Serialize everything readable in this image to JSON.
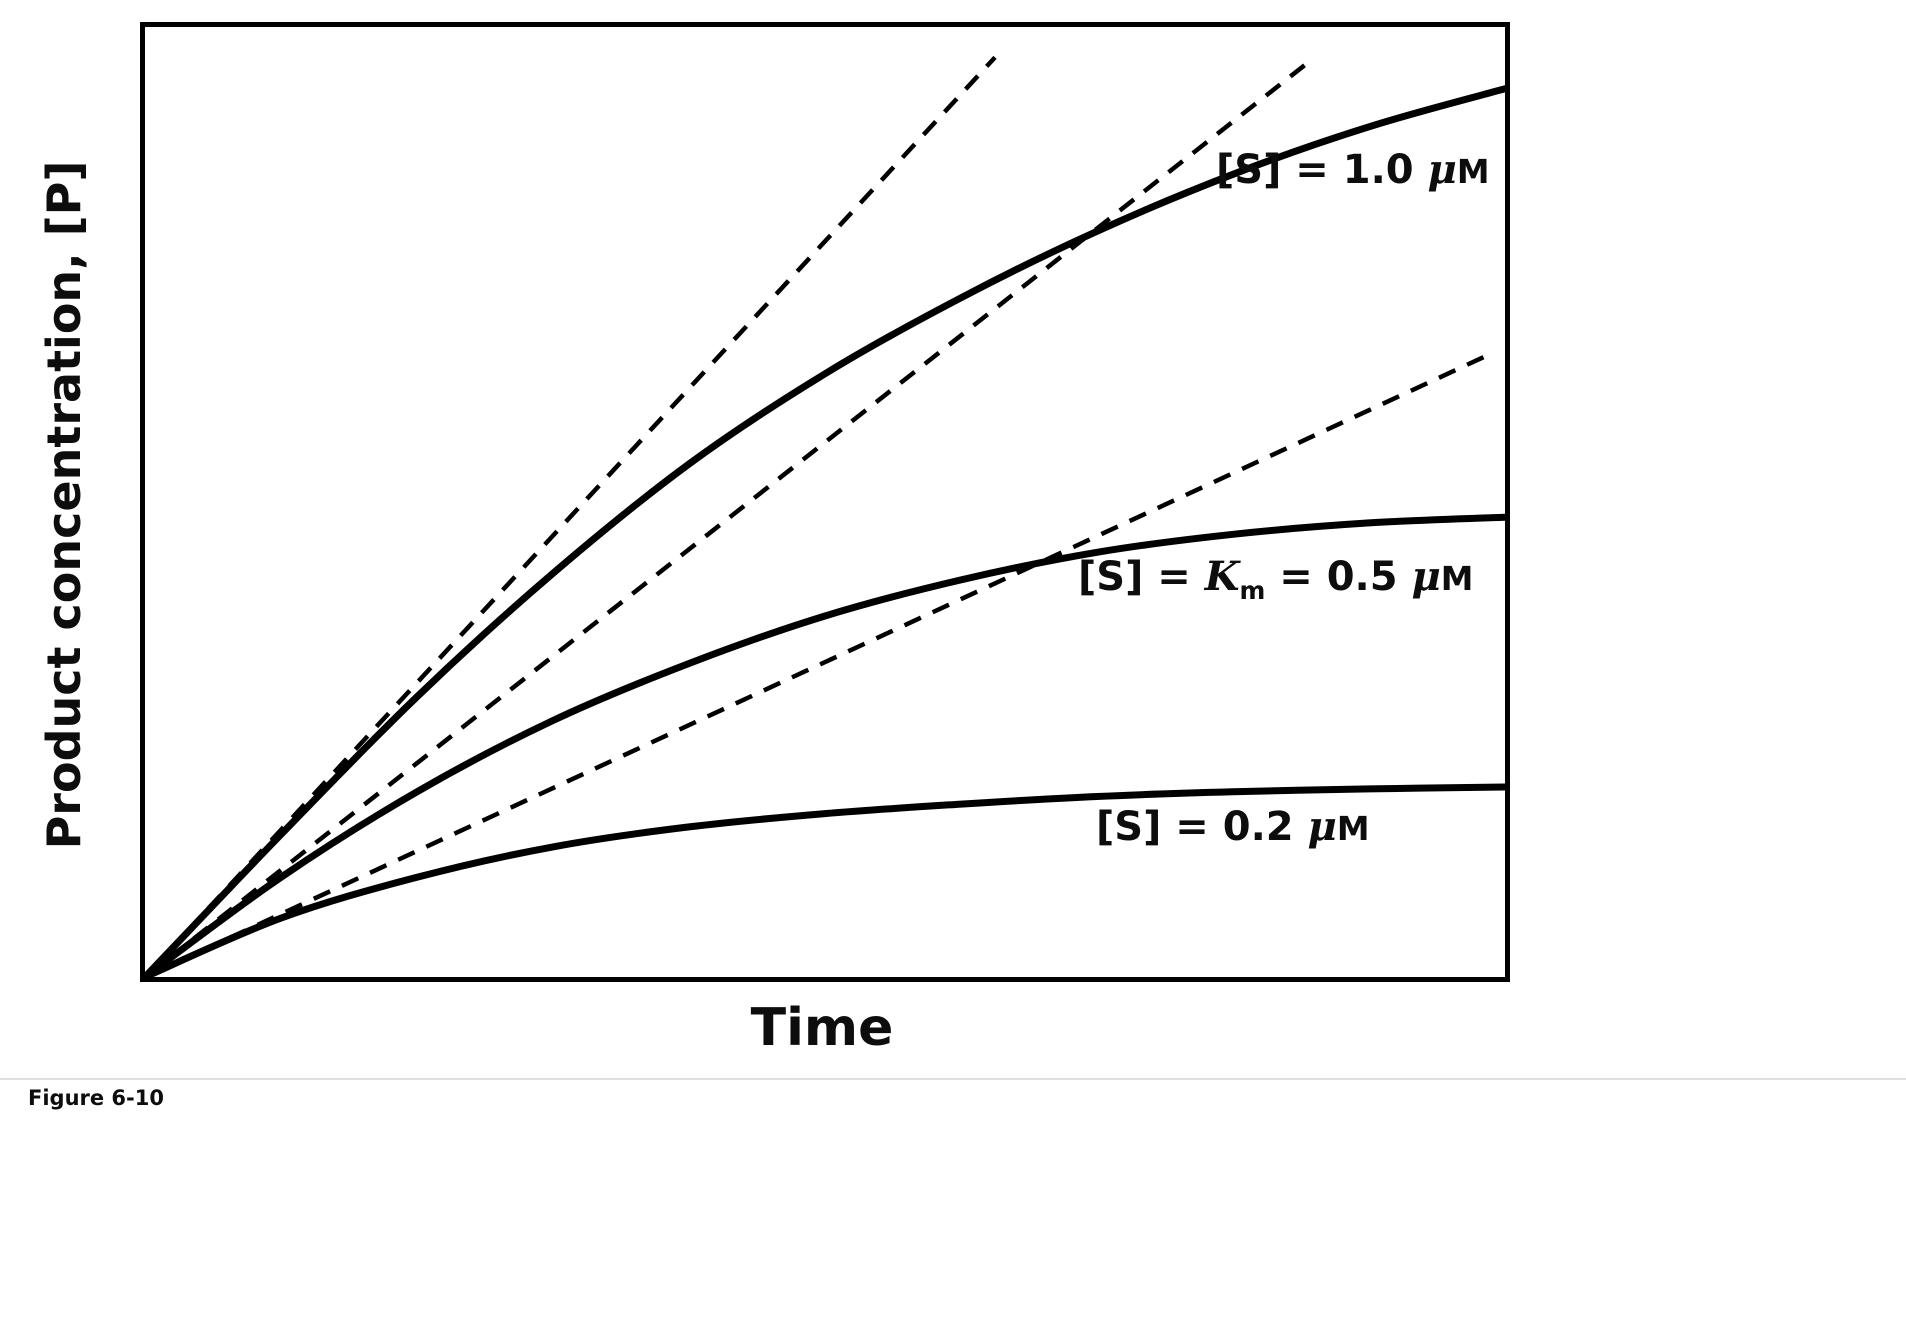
{
  "caption": "Figure 6-10",
  "chart_data": {
    "type": "line",
    "title": "",
    "xlabel": "Time",
    "ylabel": "Product concentration, [P]",
    "axes": {
      "x_ticks": [],
      "y_ticks": [],
      "x_range_normalized": [
        0,
        1
      ],
      "y_range_normalized": [
        0,
        1
      ],
      "grid": false,
      "frame": "full-box"
    },
    "line_color": "#000000",
    "x": [
      0,
      0.1,
      0.2,
      0.3,
      0.4,
      0.5,
      0.6,
      0.7,
      0.8,
      0.9,
      1.0
    ],
    "series": [
      {
        "name": "[S] = 1.0 μM",
        "style": "solid",
        "values": [
          0,
          0.15,
          0.295,
          0.425,
          0.54,
          0.635,
          0.715,
          0.785,
          0.845,
          0.895,
          0.935
        ]
      },
      {
        "name": "[S] = Km = 0.5 μM",
        "style": "solid",
        "values": [
          0,
          0.105,
          0.195,
          0.27,
          0.33,
          0.38,
          0.418,
          0.447,
          0.466,
          0.478,
          0.484
        ]
      },
      {
        "name": "[S] = 0.2 μM",
        "style": "solid",
        "values": [
          0,
          0.062,
          0.105,
          0.137,
          0.158,
          0.172,
          0.182,
          0.19,
          0.195,
          0.198,
          0.2
        ]
      }
    ],
    "initial_rate_lines": [
      {
        "for_series": "[S] = 1.0 μM",
        "style": "dashed",
        "x_start": 0,
        "y_start": 0,
        "x_end": 0.625,
        "y_end": 0.968
      },
      {
        "for_series": "[S] = Km = 0.5 μM",
        "style": "dashed",
        "x_start": 0,
        "y_start": 0,
        "x_end": 0.86,
        "y_end": 0.968
      },
      {
        "for_series": "[S] = 0.2 μM",
        "style": "dashed",
        "x_start": 0,
        "y_start": 0,
        "x_end": 0.985,
        "y_end": 0.653
      }
    ],
    "curve_labels": [
      {
        "pre": "[S] = 1.0 ",
        "mu": "μ",
        "unit": "M"
      },
      {
        "pre": "[S] = ",
        "kvar": "K",
        "ksub": "m",
        "mid": " = 0.5 ",
        "mu": "μ",
        "unit": "M"
      },
      {
        "pre": "[S] = 0.2 ",
        "mu": "μ",
        "unit": "M"
      }
    ]
  }
}
